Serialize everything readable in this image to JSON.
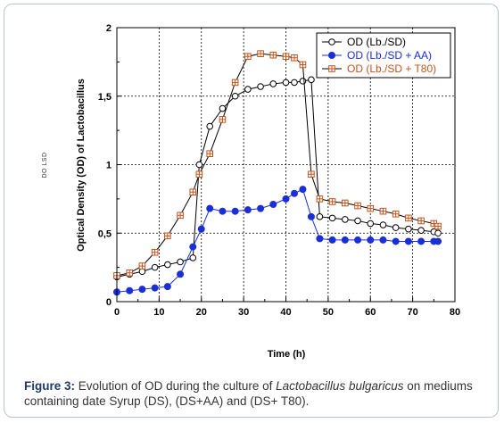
{
  "side_label": "DO LSD",
  "chart_data": {
    "type": "line",
    "xlabel": "Time (h)",
    "ylabel": "Optical Density (OD) of Lactobacillus",
    "xlim": [
      0,
      80
    ],
    "ylim": [
      0,
      2
    ],
    "xticks": [
      0,
      10,
      20,
      30,
      40,
      50,
      60,
      70,
      80
    ],
    "xtick_labels": [
      "0",
      "10",
      "20",
      "30",
      "40",
      "50",
      "60",
      "70",
      "80"
    ],
    "yticks": [
      0,
      0.5,
      1,
      1.5,
      2
    ],
    "ytick_labels": [
      "0",
      "0,5",
      "1",
      "1,5",
      "2"
    ],
    "grid": true,
    "legend_position": "top-right",
    "series": [
      {
        "name": "OD (Lb./SD)",
        "color": "#000000",
        "marker": "open-circle",
        "x": [
          0,
          3,
          6,
          9,
          12,
          15,
          18,
          19.5,
          22,
          25,
          28,
          31,
          34,
          37,
          40,
          42,
          44,
          46,
          48,
          51,
          54,
          57,
          60,
          63,
          66,
          69,
          72,
          75,
          76
        ],
        "y": [
          0.18,
          0.2,
          0.22,
          0.25,
          0.27,
          0.29,
          0.32,
          1.0,
          1.28,
          1.41,
          1.5,
          1.55,
          1.57,
          1.59,
          1.6,
          1.6,
          1.61,
          1.62,
          0.62,
          0.61,
          0.6,
          0.59,
          0.57,
          0.56,
          0.54,
          0.53,
          0.52,
          0.51,
          0.5
        ]
      },
      {
        "name": "OD (Lb./SD + AA)",
        "color": "#1a2fd6",
        "marker": "filled-circle",
        "x": [
          0,
          3,
          6,
          9,
          12,
          15,
          18,
          20,
          22,
          25,
          28,
          31,
          34,
          37,
          40,
          42,
          44,
          46,
          48,
          51,
          54,
          57,
          60,
          63,
          66,
          69,
          72,
          75,
          76
        ],
        "y": [
          0.07,
          0.08,
          0.09,
          0.1,
          0.11,
          0.2,
          0.4,
          0.53,
          0.68,
          0.66,
          0.66,
          0.67,
          0.68,
          0.71,
          0.75,
          0.79,
          0.82,
          0.62,
          0.46,
          0.45,
          0.45,
          0.45,
          0.45,
          0.45,
          0.44,
          0.44,
          0.44,
          0.44,
          0.44
        ]
      },
      {
        "name": "OD (Lb./SD + T80)",
        "color": "#c0541c",
        "marker": "open-square-cross",
        "x": [
          0,
          3,
          6,
          9,
          12,
          15,
          18,
          19.5,
          22,
          25,
          28,
          31,
          34,
          37,
          40,
          42,
          44,
          46,
          48,
          51,
          54,
          57,
          60,
          63,
          66,
          69,
          72,
          75,
          76
        ],
        "y": [
          0.19,
          0.21,
          0.26,
          0.36,
          0.48,
          0.63,
          0.8,
          0.93,
          1.08,
          1.33,
          1.6,
          1.79,
          1.81,
          1.8,
          1.79,
          1.78,
          1.73,
          0.93,
          0.75,
          0.73,
          0.72,
          0.7,
          0.68,
          0.66,
          0.64,
          0.61,
          0.59,
          0.57,
          0.55
        ]
      }
    ]
  },
  "caption": {
    "label": "Figure 3:",
    "text_before": " Evolution of OD during the culture of ",
    "organism": "Lactobacillus bulgaricus",
    "text_after": " on mediums containing date Syrup (DS), (DS+AA) and (DS+ T80)."
  }
}
